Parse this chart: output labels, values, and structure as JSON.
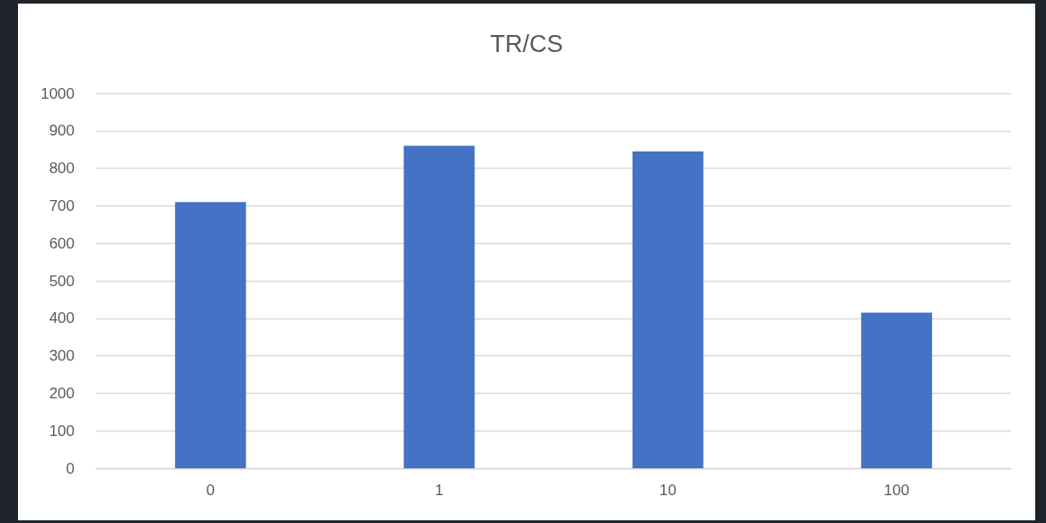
{
  "chart_data": {
    "type": "bar",
    "title": "TR/CS",
    "categories": [
      "0",
      "1",
      "10",
      "100"
    ],
    "values": [
      710,
      860,
      845,
      415
    ],
    "color": "#4472c4",
    "ylim": [
      0,
      1000
    ],
    "yticks": [
      0,
      100,
      200,
      300,
      400,
      500,
      600,
      700,
      800,
      900,
      1000
    ],
    "grid": "y"
  }
}
